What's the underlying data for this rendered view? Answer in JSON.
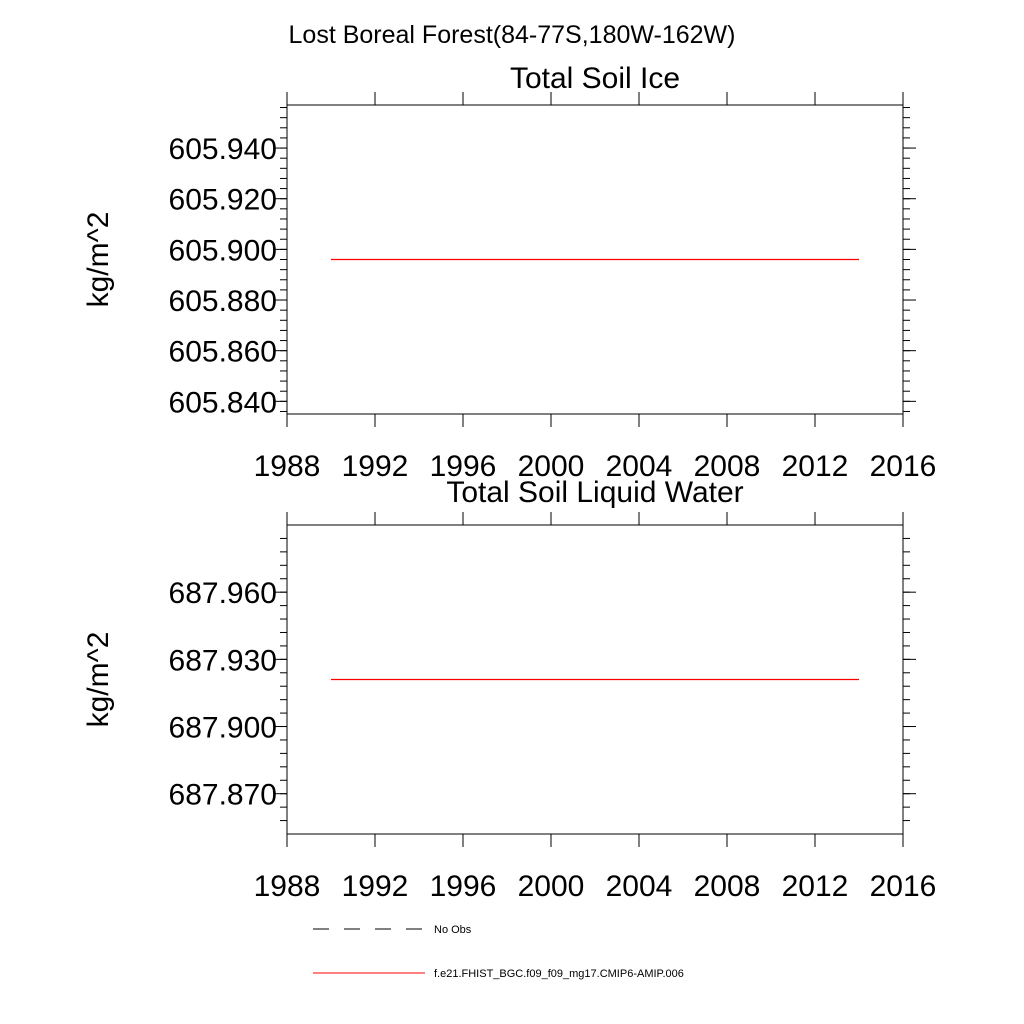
{
  "figure": {
    "title": "Lost Boreal Forest(84-77S,180W-162W)"
  },
  "chart_data": [
    {
      "type": "line",
      "title": "Total Soil Ice",
      "xlabel": "",
      "ylabel": "kg/m^2",
      "xlim": [
        1988,
        2016
      ],
      "ylim": [
        605.835,
        605.957
      ],
      "xticks": [
        1988,
        1992,
        1996,
        2000,
        2004,
        2008,
        2012,
        2016
      ],
      "xtick_labels": [
        "1988",
        "1992",
        "1996",
        "2000",
        "2004",
        "2008",
        "2012",
        "2016"
      ],
      "yticks": [
        605.84,
        605.86,
        605.88,
        605.9,
        605.92,
        605.94
      ],
      "ytick_labels": [
        "605.840",
        "605.860",
        "605.880",
        "605.900",
        "605.920",
        "605.940"
      ],
      "y_minor_step": 0.004,
      "x_minor_step": 1,
      "grid": false,
      "series": [
        {
          "name": "f.e21.FHIST_BGC.f09_f09_mg17.CMIP6-AMIP.006",
          "color": "#ff0000",
          "dash": "solid",
          "x": [
            1990,
            2014
          ],
          "y": [
            605.896,
            605.896
          ]
        }
      ]
    },
    {
      "type": "line",
      "title": "Total Soil Liquid Water",
      "xlabel": "",
      "ylabel": "kg/m^2",
      "xlim": [
        1988,
        2016
      ],
      "ylim": [
        687.852,
        687.99
      ],
      "xticks": [
        1988,
        1992,
        1996,
        2000,
        2004,
        2008,
        2012,
        2016
      ],
      "xtick_labels": [
        "1988",
        "1992",
        "1996",
        "2000",
        "2004",
        "2008",
        "2012",
        "2016"
      ],
      "yticks": [
        687.87,
        687.9,
        687.93,
        687.96
      ],
      "ytick_labels": [
        "687.870",
        "687.900",
        "687.930",
        "687.960"
      ],
      "y_minor_step": 0.006,
      "x_minor_step": 1,
      "grid": false,
      "series": [
        {
          "name": "f.e21.FHIST_BGC.f09_f09_mg17.CMIP6-AMIP.006",
          "color": "#ff0000",
          "dash": "solid",
          "x": [
            1990,
            2014
          ],
          "y": [
            687.921,
            687.921
          ]
        }
      ]
    }
  ],
  "legend": {
    "placement": "bottom",
    "items": [
      {
        "label": "No Obs",
        "color": "#000000",
        "dash": "dashed"
      },
      {
        "label": "f.e21.FHIST_BGC.f09_f09_mg17.CMIP6-AMIP.006",
        "color": "#ff0000",
        "dash": "solid"
      }
    ]
  }
}
